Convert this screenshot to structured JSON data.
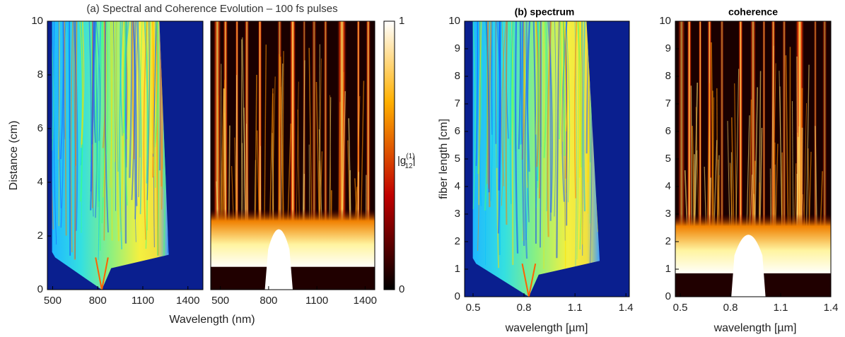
{
  "chart_data": [
    {
      "type": "heatmap",
      "colormap": "jet",
      "title": "(a) Spectral and Coherence Evolution – 100 fs pulses",
      "xlabel": "Wavelength (nm)",
      "ylabel": "Distance (cm)",
      "xlim": [
        465,
        1500
      ],
      "xticks": [
        500,
        800,
        1100,
        1400
      ],
      "ylim": [
        0,
        10
      ],
      "yticks": [
        0,
        2,
        4,
        6,
        8,
        10
      ]
    },
    {
      "type": "heatmap",
      "colormap": "hot",
      "xlim": [
        440,
        1460
      ],
      "xticks": [
        500,
        800,
        1100,
        1400
      ],
      "ylim": [
        0,
        10
      ],
      "colorbar": {
        "lim": [
          0,
          1
        ],
        "ticks": [
          0,
          1
        ],
        "label": {
          "base": "|g",
          "sup": "(1)",
          "sub": "12",
          "end": "|"
        }
      }
    },
    {
      "type": "heatmap",
      "colormap": "jet",
      "title": "(b) spectrum",
      "xlabel": "wavelength [µm]",
      "ylabel": "fiber length [cm]",
      "xlim": [
        0.45,
        1.42
      ],
      "xticks": [
        0.5,
        0.8,
        1.1,
        1.4
      ],
      "ylim": [
        0,
        10
      ],
      "yticks": [
        0,
        1,
        2,
        3,
        4,
        5,
        6,
        7,
        8,
        9,
        10
      ]
    },
    {
      "type": "heatmap",
      "colormap": "hot",
      "title": "coherence",
      "xlabel": "wavelength [µm]",
      "xlim": [
        0.47,
        1.4
      ],
      "xticks": [
        0.5,
        0.8,
        1.1,
        1.4
      ],
      "ylim": [
        0,
        10
      ],
      "yticks": [
        0,
        1,
        2,
        3,
        4,
        5,
        6,
        7,
        8,
        9,
        10
      ]
    }
  ]
}
